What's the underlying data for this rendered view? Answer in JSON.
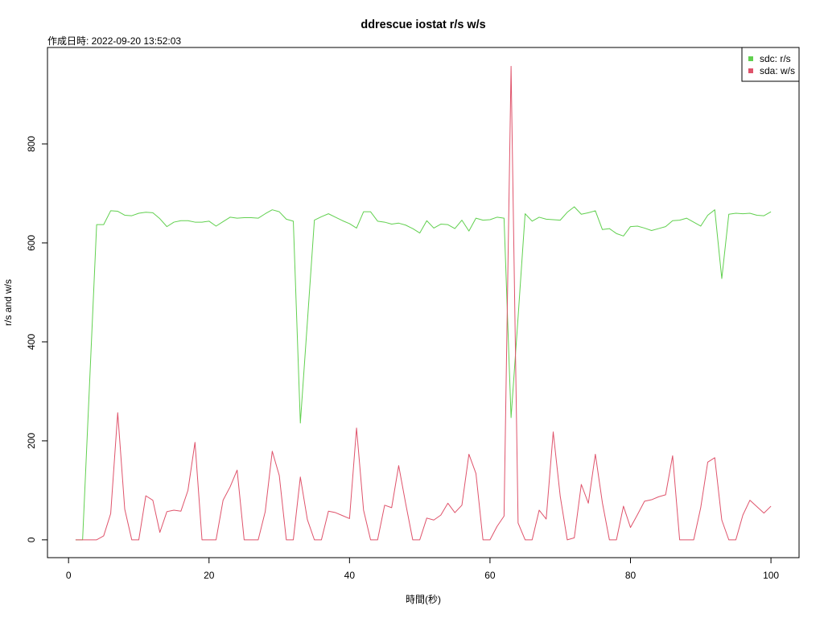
{
  "chart_data": {
    "type": "line",
    "title": "ddrescue iostat r/s w/s",
    "subtitle": "作成日時: 2022-09-20 13:52:03",
    "xlabel": "時間(秒)",
    "ylabel": "r/s and w/s",
    "xlim": [
      -3,
      104
    ],
    "ylim": [
      -36,
      995
    ],
    "xticks": [
      0,
      20,
      40,
      60,
      80,
      100
    ],
    "xtick_labels": [
      "0",
      "20",
      "40",
      "60",
      "80",
      "100"
    ],
    "yticks": [
      0,
      200,
      400,
      600,
      800
    ],
    "ytick_labels": [
      "0",
      "200",
      "400",
      "600",
      "800"
    ],
    "grid": false,
    "legend_position": "top-right",
    "x": [
      1,
      2,
      3,
      4,
      5,
      6,
      7,
      8,
      9,
      10,
      11,
      12,
      13,
      14,
      15,
      16,
      17,
      18,
      19,
      20,
      21,
      22,
      23,
      24,
      25,
      26,
      27,
      28,
      29,
      30,
      31,
      32,
      33,
      34,
      35,
      36,
      37,
      38,
      39,
      40,
      41,
      42,
      43,
      44,
      45,
      46,
      47,
      48,
      49,
      50,
      51,
      52,
      53,
      54,
      55,
      56,
      57,
      58,
      59,
      60,
      61,
      62,
      63,
      64,
      65,
      66,
      67,
      68,
      69,
      70,
      71,
      72,
      73,
      74,
      75,
      76,
      77,
      78,
      79,
      80,
      81,
      82,
      83,
      84,
      85,
      86,
      87,
      88,
      89,
      90,
      91,
      92,
      93,
      94,
      95,
      96,
      97,
      98,
      99,
      100
    ],
    "series": [
      {
        "name": "sdc: r/s",
        "color": "#61D04F",
        "values": [
          0,
          0,
          318,
          637,
          637,
          665,
          664,
          656,
          655,
          660,
          662,
          661,
          649,
          633,
          642,
          645,
          645,
          642,
          642,
          644,
          634,
          643,
          652,
          650,
          651,
          651,
          650,
          659,
          667,
          663,
          648,
          644,
          236,
          440,
          646,
          653,
          659,
          652,
          645,
          639,
          630,
          663,
          663,
          644,
          642,
          638,
          640,
          636,
          629,
          620,
          645,
          630,
          638,
          637,
          629,
          646,
          624,
          650,
          646,
          647,
          652,
          650,
          247,
          450,
          659,
          644,
          652,
          648,
          647,
          646,
          662,
          673,
          658,
          661,
          665,
          627,
          629,
          619,
          614,
          633,
          634,
          630,
          625,
          629,
          633,
          645,
          646,
          650,
          642,
          634,
          656,
          667,
          528,
          658,
          660,
          659,
          660,
          656,
          655,
          663
        ]
      },
      {
        "name": "sda: w/s",
        "color": "#DF536B",
        "values": [
          0,
          0,
          0,
          0,
          8,
          53,
          257,
          62,
          0,
          0,
          89,
          80,
          15,
          57,
          60,
          58,
          100,
          197,
          0,
          0,
          0,
          80,
          107,
          141,
          0,
          0,
          0,
          57,
          179,
          130,
          0,
          0,
          127,
          41,
          0,
          0,
          58,
          55,
          49,
          43,
          226,
          60,
          0,
          0,
          70,
          65,
          150,
          73,
          0,
          0,
          44,
          40,
          50,
          74,
          55,
          70,
          173,
          134,
          0,
          0,
          27,
          48,
          957,
          34,
          0,
          0,
          60,
          42,
          218,
          88,
          0,
          4,
          112,
          74,
          173,
          75,
          0,
          0,
          68,
          25,
          51,
          78,
          81,
          87,
          91,
          170,
          0,
          0,
          0,
          65,
          157,
          166,
          40,
          0,
          0,
          50,
          80,
          67,
          54,
          68
        ]
      }
    ]
  }
}
